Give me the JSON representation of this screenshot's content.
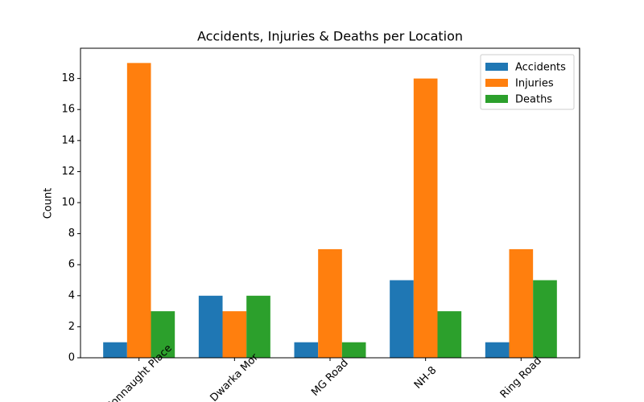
{
  "chart_data": {
    "type": "grouped_bar",
    "title": "Accidents, Injuries & Deaths per Location",
    "y_label": "Count",
    "categories": [
      "Connaught Place",
      "Dwarka Mor",
      "MG Road",
      "NH-8",
      "Ring Road"
    ],
    "series": [
      {
        "name": "Accidents",
        "color": "#1f77b4",
        "values": [
          1,
          4,
          1,
          5,
          1
        ]
      },
      {
        "name": "Injuries",
        "color": "#ff7f0e",
        "values": [
          19,
          3,
          7,
          18,
          7
        ]
      },
      {
        "name": "Deaths",
        "color": "#2ca02c",
        "values": [
          3,
          4,
          1,
          3,
          5
        ]
      }
    ],
    "ylim": [
      0,
      19.95
    ],
    "yticks": [
      0,
      2,
      4,
      6,
      8,
      10,
      12,
      14,
      16,
      18
    ],
    "legend": "upper right"
  }
}
